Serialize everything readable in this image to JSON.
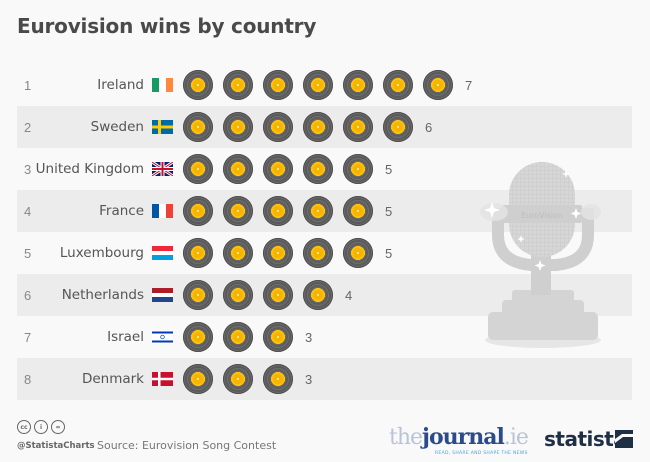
{
  "title": "Eurovision wins by country",
  "rows": [
    {
      "rank": "1",
      "country": "Ireland",
      "flag": "ireland-flag",
      "wins": 7,
      "count_label": "7"
    },
    {
      "rank": "2",
      "country": "Sweden",
      "flag": "sweden-flag",
      "wins": 6,
      "count_label": "6"
    },
    {
      "rank": "3",
      "country": "United Kingdom",
      "flag": "uk-flag",
      "wins": 5,
      "count_label": "5"
    },
    {
      "rank": "4",
      "country": "France",
      "flag": "france-flag",
      "wins": 5,
      "count_label": "5"
    },
    {
      "rank": "5",
      "country": "Luxembourg",
      "flag": "luxembourg-flag",
      "wins": 5,
      "count_label": "5"
    },
    {
      "rank": "6",
      "country": "Netherlands",
      "flag": "netherlands-flag",
      "wins": 4,
      "count_label": "4"
    },
    {
      "rank": "7",
      "country": "Israel",
      "flag": "israel-flag",
      "wins": 3,
      "count_label": "3"
    },
    {
      "rank": "8",
      "country": "Denmark",
      "flag": "denmark-flag",
      "wins": 3,
      "count_label": "3"
    }
  ],
  "icons": {
    "unit": "vinyl-record-icon",
    "illustration": "microphone-trophy-icon",
    "license": [
      "cc-icon",
      "by-icon",
      "nd-icon"
    ]
  },
  "colors": {
    "disc_body": "#5e5e5e",
    "disc_label": "#ffb300",
    "row_alt_bg": "#ececec",
    "background": "#f9f9f9",
    "title": "#4a4a4a"
  },
  "footer": {
    "license_labels": [
      "cc",
      "i",
      "="
    ],
    "handle": "@StatistaCharts",
    "source": "Source: Eurovision Song Contest",
    "partner_the": "the",
    "partner_journal": "journal",
    "partner_ie": ".ie",
    "partner_tagline": "READ, SHARE AND SHAPE THE NEWS",
    "brand": "statista"
  },
  "chart_data": {
    "type": "bar",
    "title": "Eurovision wins by country",
    "categories": [
      "Ireland",
      "Sweden",
      "United Kingdom",
      "France",
      "Luxembourg",
      "Netherlands",
      "Israel",
      "Denmark"
    ],
    "values": [
      7,
      6,
      5,
      5,
      5,
      4,
      3,
      3
    ],
    "ranks": [
      1,
      2,
      3,
      4,
      5,
      6,
      7,
      8
    ],
    "orientation": "horizontal",
    "style": "pictogram (one vinyl record per win)",
    "xlabel": "",
    "ylabel": "",
    "source": "Eurovision Song Contest",
    "grid": false,
    "legend": null
  }
}
